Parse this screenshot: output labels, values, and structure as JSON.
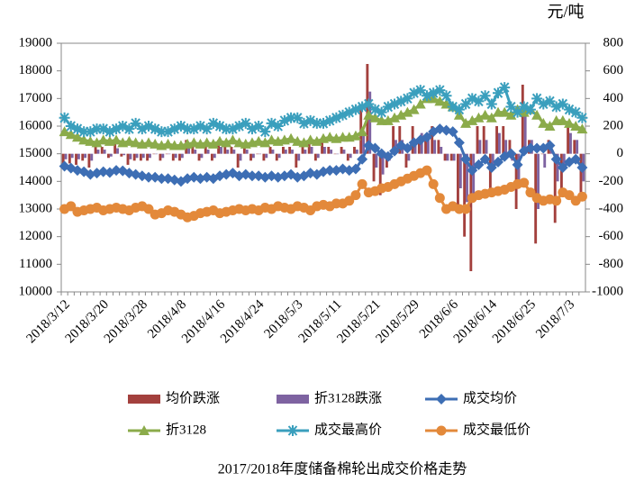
{
  "chart_data": {
    "type": "combo",
    "title": "2017/2018年度储备棉轮出成交价格走势",
    "y2_label": "元/吨",
    "categories": [
      "2018/3/12",
      null,
      null,
      null,
      null,
      null,
      "2018/3/20",
      null,
      null,
      null,
      null,
      null,
      "2018/3/28",
      null,
      null,
      null,
      null,
      null,
      "2018/4/8",
      null,
      null,
      null,
      null,
      null,
      "2018/4/16",
      null,
      null,
      null,
      null,
      null,
      "2018/4/24",
      null,
      null,
      null,
      null,
      null,
      "2018/5/3",
      null,
      null,
      null,
      null,
      null,
      "2018/5/11",
      null,
      null,
      null,
      null,
      null,
      "2018/5/21",
      null,
      null,
      null,
      null,
      null,
      "2018/5/29",
      null,
      null,
      null,
      null,
      null,
      "2018/6/6",
      null,
      null,
      null,
      null,
      null,
      "2018/6/14",
      null,
      null,
      null,
      null,
      null,
      "2018/6/25",
      null,
      null,
      null,
      null,
      null,
      "2018/7/3",
      null,
      null
    ],
    "ylim": [
      10000,
      19000
    ],
    "yticks": [
      10000,
      11000,
      12000,
      13000,
      14000,
      15000,
      16000,
      17000,
      18000,
      19000
    ],
    "y2lim": [
      -1000,
      800
    ],
    "y2ticks": [
      -1000,
      -800,
      -600,
      -400,
      -200,
      0,
      200,
      400,
      600,
      800
    ],
    "series": [
      {
        "name": "均价跌涨",
        "type": "bar",
        "axis": "y2",
        "color": "#a3403d",
        "values": [
          -80,
          -70,
          -80,
          -50,
          -100,
          50,
          50,
          -30,
          80,
          -20,
          -80,
          -50,
          -50,
          -50,
          0,
          -50,
          0,
          -50,
          -50,
          100,
          50,
          -50,
          50,
          -50,
          100,
          50,
          50,
          -100,
          50,
          -50,
          0,
          -50,
          50,
          -50,
          50,
          50,
          -100,
          50,
          100,
          -50,
          100,
          50,
          0,
          50,
          -50,
          50,
          350,
          650,
          -200,
          -300,
          -100,
          200,
          200,
          -100,
          200,
          100,
          100,
          200,
          100,
          -50,
          -50,
          -400,
          -600,
          -850,
          200,
          200,
          -300,
          200,
          200,
          100,
          -400,
          500,
          100,
          -650,
          0,
          100,
          -500,
          -300,
          200,
          100,
          -300
        ]
      },
      {
        "name": "折3128跌涨",
        "type": "bar",
        "axis": "y2",
        "color": "#7e63a1",
        "values": [
          -40,
          -30,
          -40,
          -30,
          -50,
          30,
          30,
          -20,
          40,
          -10,
          -40,
          -30,
          -30,
          -30,
          0,
          -30,
          0,
          -30,
          -30,
          50,
          30,
          -30,
          30,
          -30,
          50,
          30,
          30,
          -50,
          30,
          -30,
          0,
          -30,
          30,
          -30,
          30,
          30,
          -50,
          30,
          50,
          -30,
          50,
          30,
          0,
          30,
          -30,
          30,
          150,
          450,
          -100,
          -150,
          -50,
          100,
          100,
          -50,
          100,
          150,
          150,
          100,
          50,
          -50,
          -50,
          -250,
          -350,
          -300,
          100,
          100,
          -100,
          150,
          100,
          -50,
          -200,
          300,
          100,
          -400,
          -100,
          50,
          -200,
          -100,
          150,
          100,
          -200
        ]
      },
      {
        "name": "成交均价",
        "type": "line",
        "marker": "diamond",
        "color": "#3d6eb4",
        "values": [
          14550,
          14480,
          14400,
          14350,
          14250,
          14300,
          14350,
          14320,
          14400,
          14380,
          14300,
          14250,
          14200,
          14150,
          14150,
          14100,
          14100,
          14050,
          14000,
          14100,
          14150,
          14100,
          14150,
          14100,
          14200,
          14250,
          14300,
          14200,
          14250,
          14200,
          14200,
          14150,
          14200,
          14150,
          14200,
          14250,
          14150,
          14200,
          14300,
          14250,
          14350,
          14400,
          14400,
          14450,
          14400,
          14450,
          14800,
          15300,
          15200,
          15000,
          14900,
          15100,
          15300,
          15200,
          15400,
          15500,
          15600,
          15800,
          15900,
          15850,
          15800,
          15400,
          14800,
          14400,
          14600,
          14800,
          14500,
          14700,
          14900,
          15000,
          14600,
          15100,
          15200,
          15200,
          15200,
          15300,
          14800,
          14500,
          14700,
          14800,
          14500
        ]
      },
      {
        "name": "折3128",
        "type": "line",
        "marker": "triangle",
        "color": "#8bab4a",
        "values": [
          15800,
          15700,
          15600,
          15500,
          15450,
          15400,
          15500,
          15450,
          15500,
          15400,
          15450,
          15400,
          15350,
          15400,
          15350,
          15300,
          15350,
          15300,
          15300,
          15350,
          15400,
          15350,
          15400,
          15350,
          15450,
          15400,
          15500,
          15400,
          15350,
          15400,
          15450,
          15400,
          15500,
          15450,
          15500,
          15550,
          15450,
          15400,
          15500,
          15450,
          15550,
          15600,
          15550,
          15600,
          15600,
          15650,
          15800,
          16400,
          16300,
          16200,
          16200,
          16300,
          16400,
          16500,
          16600,
          16800,
          17000,
          17000,
          16900,
          16800,
          16700,
          16400,
          16100,
          16200,
          16300,
          16400,
          16300,
          16500,
          16500,
          16400,
          16600,
          16500,
          16600,
          16400,
          16100,
          16000,
          16200,
          16200,
          16100,
          16000,
          15900
        ]
      },
      {
        "name": "成交最高价",
        "type": "line",
        "marker": "star",
        "color": "#3a9fbd",
        "values": [
          16300,
          16000,
          15900,
          15800,
          15800,
          15900,
          15900,
          15800,
          15900,
          16000,
          15900,
          16100,
          15900,
          16000,
          15900,
          15800,
          15800,
          15900,
          16000,
          15900,
          15900,
          16000,
          15900,
          16100,
          16000,
          15900,
          15900,
          16000,
          16100,
          15900,
          16000,
          15800,
          16100,
          16000,
          16200,
          16300,
          16300,
          16100,
          16200,
          16100,
          16100,
          16200,
          16300,
          16400,
          16500,
          16600,
          16700,
          16800,
          16600,
          16500,
          16700,
          16800,
          16900,
          17000,
          17200,
          17300,
          17100,
          17200,
          17300,
          17100,
          16700,
          16600,
          16800,
          17000,
          16900,
          17100,
          16800,
          17200,
          17400,
          16700,
          16500,
          16700,
          16600,
          17000,
          16800,
          16900,
          16700,
          16800,
          16600,
          16500,
          16300
        ]
      },
      {
        "name": "成交最低价",
        "type": "line",
        "marker": "circle",
        "color": "#e3893a",
        "values": [
          13000,
          13100,
          12900,
          12950,
          13000,
          13050,
          12950,
          13000,
          13050,
          13000,
          12950,
          13050,
          13100,
          13000,
          12800,
          12850,
          12950,
          12900,
          12800,
          12700,
          12750,
          12850,
          12900,
          12950,
          12850,
          12900,
          12950,
          13000,
          12950,
          13000,
          12950,
          13050,
          13000,
          13100,
          13050,
          13000,
          13100,
          13050,
          12950,
          13100,
          13150,
          13100,
          13200,
          13200,
          13300,
          13500,
          13900,
          13600,
          13650,
          13750,
          13800,
          13900,
          14000,
          14100,
          14200,
          14300,
          14400,
          13900,
          13400,
          13000,
          13100,
          13000,
          13000,
          13400,
          13500,
          13550,
          13600,
          13650,
          13700,
          13800,
          13900,
          13950,
          13600,
          13400,
          13300,
          13350,
          13300,
          13600,
          13500,
          13300,
          13450
        ]
      }
    ]
  }
}
